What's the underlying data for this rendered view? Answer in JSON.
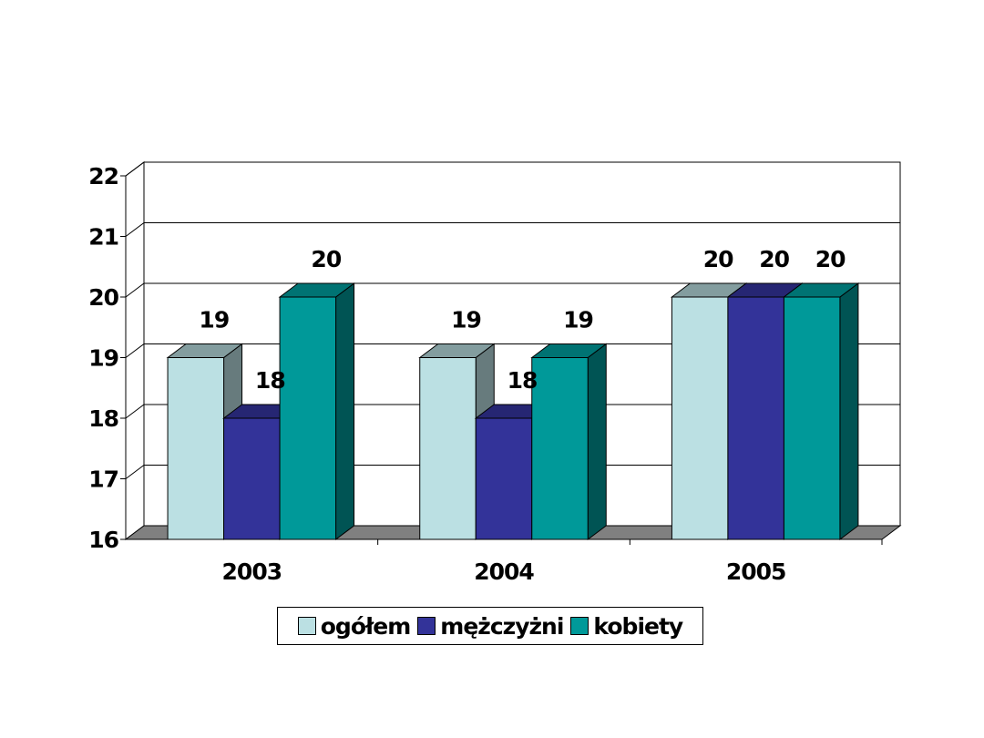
{
  "chart_data": {
    "type": "bar",
    "categories": [
      "2003",
      "2004",
      "2005"
    ],
    "series": [
      {
        "name": "ogółem",
        "values": [
          19,
          19,
          20
        ],
        "color": "#BBE0E3"
      },
      {
        "name": "mężczyżni",
        "values": [
          18,
          18,
          20
        ],
        "color": "#333399"
      },
      {
        "name": "kobiety",
        "values": [
          20,
          19,
          20
        ],
        "color": "#009999"
      }
    ],
    "y_ticks": [
      "16",
      "17",
      "18",
      "19",
      "20",
      "21",
      "22"
    ],
    "ylim": [
      16,
      22
    ],
    "grid": true,
    "three_d": true,
    "legend_position": "bottom",
    "data_labels": [
      [
        "19",
        "18",
        "20"
      ],
      [
        "19",
        "18",
        "19"
      ],
      [
        "20",
        "20",
        "20"
      ]
    ]
  }
}
